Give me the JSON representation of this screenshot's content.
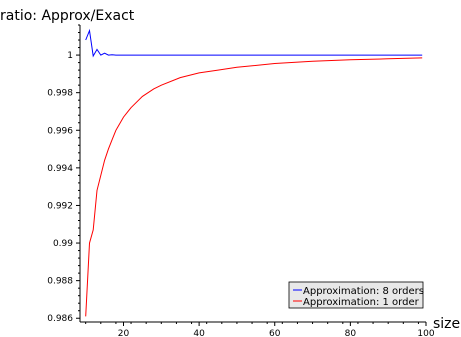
{
  "chart_data": {
    "type": "line",
    "title": "ratio: Approx/Exact",
    "xlabel": "size",
    "ylabel": "",
    "xlim": [
      8.5,
      100
    ],
    "ylim": [
      0.9858,
      1.0016
    ],
    "x_ticks": [
      20,
      40,
      60,
      80,
      100
    ],
    "x_tick_labels": [
      "20",
      "40",
      "60",
      "80",
      "100"
    ],
    "y_ticks": [
      0.986,
      0.988,
      0.99,
      0.992,
      0.994,
      0.996,
      0.998,
      1
    ],
    "y_tick_labels": [
      "0.986",
      "0.988",
      "0.99",
      "0.992",
      "0.994",
      "0.996",
      "0.998",
      "1"
    ],
    "grid": false,
    "legend_position": "bottom-right",
    "series": [
      {
        "name": "Approximation: 8 orders",
        "color": "#0000ff",
        "x": [
          10,
          11,
          12,
          13,
          14,
          15,
          16,
          17,
          18,
          20,
          25,
          30,
          40,
          50,
          60,
          70,
          80,
          90,
          99
        ],
        "y": [
          1.0008,
          1.0013,
          0.99995,
          1.0003,
          1.0,
          1.0001,
          1.0,
          1.00002,
          1.0,
          1.0,
          1.0,
          1.0,
          1.0,
          1.0,
          1.0,
          1.0,
          1.0,
          1.0,
          1.0
        ]
      },
      {
        "name": "Approximation: 1 order",
        "color": "#ff0000",
        "x": [
          10,
          11,
          12,
          13,
          14,
          15,
          16,
          17,
          18,
          20,
          22,
          25,
          28,
          30,
          35,
          40,
          45,
          50,
          60,
          70,
          80,
          90,
          99
        ],
        "y": [
          0.9861,
          0.99,
          0.9907,
          0.9928,
          0.9936,
          0.9944,
          0.995,
          0.9955,
          0.996,
          0.9967,
          0.9972,
          0.9978,
          0.9982,
          0.9984,
          0.9988,
          0.99905,
          0.9992,
          0.99935,
          0.99955,
          0.99967,
          0.99975,
          0.9998,
          0.99985
        ]
      }
    ]
  }
}
